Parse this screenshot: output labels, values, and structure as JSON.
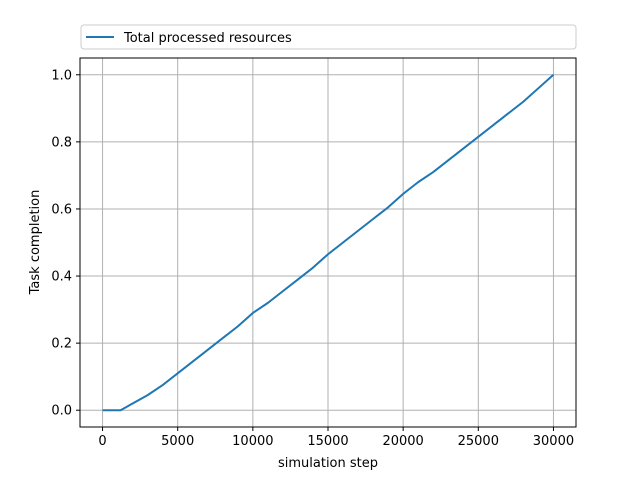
{
  "chart_data": {
    "type": "line",
    "title": "",
    "xlabel": "simulation step",
    "ylabel": "Task completion",
    "xlim": [
      -1500,
      31500
    ],
    "ylim": [
      -0.05,
      1.05
    ],
    "xticks": [
      0,
      5000,
      10000,
      15000,
      20000,
      25000,
      30000
    ],
    "xtick_labels": [
      "0",
      "5000",
      "10000",
      "15000",
      "20000",
      "25000",
      "30000"
    ],
    "yticks": [
      0.0,
      0.2,
      0.4,
      0.6,
      0.8,
      1.0
    ],
    "ytick_labels": [
      "0.0",
      "0.2",
      "0.4",
      "0.6",
      "0.8",
      "1.0"
    ],
    "grid": true,
    "legend_position": "top, spanning full width",
    "series": [
      {
        "name": "Total processed resources",
        "color": "#1f77b4",
        "x": [
          0,
          1200,
          2000,
          3000,
          4000,
          5000,
          6000,
          7000,
          8000,
          9000,
          10000,
          11000,
          12000,
          13000,
          14000,
          15000,
          16000,
          17000,
          18000,
          19000,
          20000,
          21000,
          22000,
          23000,
          24000,
          25000,
          26000,
          27000,
          28000,
          29000,
          30000
        ],
        "y": [
          0.0,
          0.0,
          0.02,
          0.045,
          0.075,
          0.11,
          0.145,
          0.18,
          0.215,
          0.25,
          0.29,
          0.32,
          0.355,
          0.39,
          0.425,
          0.465,
          0.5,
          0.535,
          0.57,
          0.605,
          0.645,
          0.68,
          0.71,
          0.745,
          0.78,
          0.815,
          0.85,
          0.885,
          0.92,
          0.96,
          1.0
        ]
      }
    ]
  }
}
